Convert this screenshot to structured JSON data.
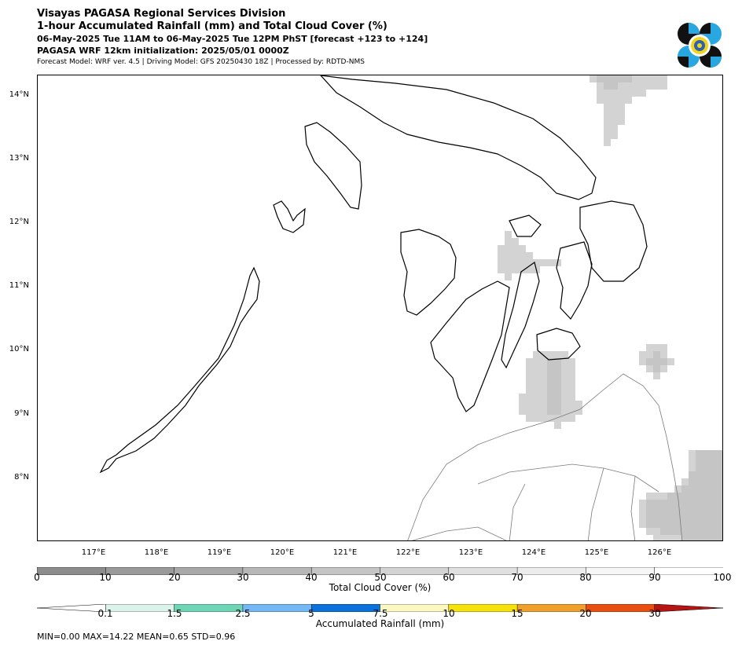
{
  "titles": {
    "line1": "Visayas PAGASA Regional Services Division",
    "line2": "1-hour Accumulated Rainfall (mm) and Total Cloud Cover (%)",
    "line3": "06-May-2025 Tue 11AM to 06-May-2025 Tue 12PM PhST [forecast +123 to +124]",
    "line4": "PAGASA WRF 12km initialization: 2025/05/01 0000Z",
    "line5": "Forecast Model: WRF ver. 4.5 | Driving Model: GFS 20250430 18Z | Processed by: RDTD-NMS"
  },
  "map": {
    "lat_labels": [
      "14°N",
      "13°N",
      "12°N",
      "11°N",
      "10°N",
      "9°N",
      "8°N"
    ],
    "lon_labels": [
      "117°E",
      "118°E",
      "119°E",
      "120°E",
      "121°E",
      "122°E",
      "123°E",
      "124°E",
      "125°E",
      "126°E"
    ],
    "lat_values": [
      14,
      13,
      12,
      11,
      10,
      9,
      8
    ],
    "lon_values": [
      117,
      118,
      119,
      120,
      121,
      122,
      123,
      124,
      125,
      126
    ]
  },
  "cloud_bar": {
    "title": "Total Cloud Cover (%)",
    "ticks": [
      "0",
      "10",
      "20",
      "30",
      "40",
      "50",
      "60",
      "70",
      "80",
      "90",
      "100"
    ],
    "colors": [
      "#8c8c8c",
      "#9a9a9a",
      "#a8a8a8",
      "#b7b7b7",
      "#c5c5c5",
      "#d3d3d3",
      "#e0e0e0",
      "#ececec",
      "#f6f6f6",
      "#ffffff"
    ]
  },
  "rain_bar": {
    "title": "Accumulated Rainfall (mm)",
    "ticks": [
      "0.1",
      "1.5",
      "2.5",
      "5",
      "7.5",
      "10",
      "15",
      "20",
      "30"
    ],
    "colors": [
      "#dcf3ec",
      "#6fd6b5",
      "#74b8f6",
      "#0a72da",
      "#fbf7c0",
      "#f5e10c",
      "#f0a12b",
      "#e9500f"
    ],
    "under_color": "#ffffff",
    "over_color": "#b71414"
  },
  "stats": {
    "text": "MIN=0.00   MAX=14.22   MEAN=0.65   STD=0.96"
  },
  "colors": {
    "coast": "#000000",
    "border": "#7a7a7a"
  }
}
